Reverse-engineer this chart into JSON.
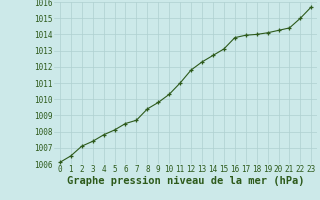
{
  "x": [
    0,
    1,
    2,
    3,
    4,
    5,
    6,
    7,
    8,
    9,
    10,
    11,
    12,
    13,
    14,
    15,
    16,
    17,
    18,
    19,
    20,
    21,
    22,
    23
  ],
  "y": [
    1006.1,
    1006.5,
    1007.1,
    1007.4,
    1007.8,
    1008.1,
    1008.5,
    1008.7,
    1009.4,
    1009.8,
    1010.3,
    1011.0,
    1011.8,
    1012.3,
    1012.7,
    1013.1,
    1013.8,
    1013.95,
    1014.0,
    1014.1,
    1014.25,
    1014.4,
    1015.0,
    1015.7
  ],
  "ylim": [
    1006,
    1016
  ],
  "xlim_min": -0.5,
  "xlim_max": 23.5,
  "yticks": [
    1006,
    1007,
    1008,
    1009,
    1010,
    1011,
    1012,
    1013,
    1014,
    1015,
    1016
  ],
  "xticks": [
    0,
    1,
    2,
    3,
    4,
    5,
    6,
    7,
    8,
    9,
    10,
    11,
    12,
    13,
    14,
    15,
    16,
    17,
    18,
    19,
    20,
    21,
    22,
    23
  ],
  "xlabel": "Graphe pression niveau de la mer (hPa)",
  "line_color": "#2d5a1b",
  "marker": "+",
  "bg_color": "#cce9e9",
  "grid_color": "#afd0d0",
  "tick_label_fontsize": 5.5,
  "xlabel_fontsize": 7.5,
  "line_width": 0.8,
  "marker_size": 3.5,
  "marker_edge_width": 0.9
}
